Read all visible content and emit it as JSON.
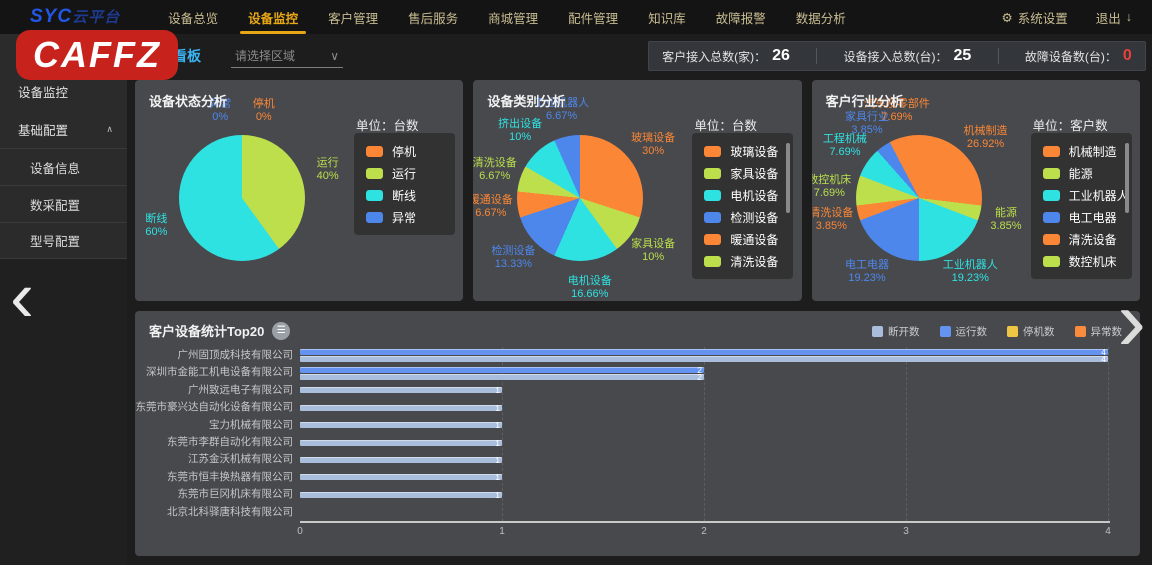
{
  "nav": {
    "logo_main": "SYC",
    "logo_sub": "云平台",
    "items": [
      {
        "label": "设备总览",
        "active": false
      },
      {
        "label": "设备监控",
        "active": true
      },
      {
        "label": "客户管理",
        "active": false
      },
      {
        "label": "售后服务",
        "active": false
      },
      {
        "label": "商城管理",
        "active": false
      },
      {
        "label": "配件管理",
        "active": false
      },
      {
        "label": "知识库",
        "active": false
      },
      {
        "label": "故障报警",
        "active": false
      },
      {
        "label": "数据分析",
        "active": false
      }
    ],
    "system_settings": "系统设置",
    "logout": "退出"
  },
  "sidebar": {
    "items": [
      {
        "label": "统计看板",
        "type": "item",
        "active": true
      },
      {
        "label": "设备监控",
        "type": "item"
      },
      {
        "label": "基础配置",
        "type": "item",
        "expand": true
      },
      {
        "label": "设备信息",
        "type": "sub"
      },
      {
        "label": "数采配置",
        "type": "sub"
      },
      {
        "label": "型号配置",
        "type": "sub"
      }
    ]
  },
  "header": {
    "page_title": "统计看板",
    "region_placeholder": "请选择区域",
    "stats": [
      {
        "label": "客户接入总数(家)：",
        "value": "26",
        "color": "#ffffff"
      },
      {
        "label": "设备接入总数(台)：",
        "value": "25",
        "color": "#ffffff"
      },
      {
        "label": "故障设备数(台)：",
        "value": "0",
        "color": "#e8413c"
      }
    ]
  },
  "watermark": {
    "text": "CAFFZ",
    "color": "#c7231c"
  },
  "chart_data": [
    {
      "type": "pie",
      "title": "设备状态分析",
      "unit": "单位：台数",
      "legend": [
        "停机",
        "运行",
        "断线",
        "异常"
      ],
      "legend_scrollbar": false,
      "slices": [
        {
          "name": "停机",
          "value": 0,
          "pct": "0%",
          "color": "#fb8636",
          "label_angle": 14
        },
        {
          "name": "运行",
          "value": 40,
          "pct": "40%",
          "color": "#bcdf4b",
          "label_angle": 72
        },
        {
          "name": "断线",
          "value": 60,
          "pct": "60%",
          "color": "#2fe2e2",
          "label_angle": 252
        },
        {
          "name": "异常",
          "value": 0,
          "pct": "0%",
          "color": "#4e87ec",
          "label_angle": 346
        }
      ]
    },
    {
      "type": "pie",
      "title": "设备类别分析",
      "unit": "单位：台数",
      "legend": [
        "玻璃设备",
        "家具设备",
        "电机设备",
        "检测设备",
        "暖通设备",
        "清洗设备"
      ],
      "legend_scrollbar": true,
      "slices": [
        {
          "name": "玻璃设备",
          "value": 30,
          "pct": "30%",
          "color": "#fb8636",
          "label_angle": 54
        },
        {
          "name": "家具设备",
          "value": 10,
          "pct": "10%",
          "color": "#bcdf4b",
          "label_angle": 126
        },
        {
          "name": "电机设备",
          "value": 16.66,
          "pct": "16.66%",
          "color": "#2fe2e2",
          "label_angle": 174
        },
        {
          "name": "检测设备",
          "value": 13.33,
          "pct": "13.33%",
          "color": "#4e87ec",
          "label_angle": 228
        },
        {
          "name": "暖通设备",
          "value": 6.67,
          "pct": "6.67%",
          "color": "#fb8636",
          "label_angle": 264
        },
        {
          "name": "清洗设备",
          "value": 6.67,
          "pct": "6.67%",
          "color": "#bcdf4b",
          "label_angle": 288
        },
        {
          "name": "挤出设备",
          "value": 10,
          "pct": "10%",
          "color": "#2fe2e2",
          "label_angle": 318
        },
        {
          "name": "工业机器人",
          "value": 6.67,
          "pct": "6.67%",
          "color": "#4e87ec",
          "label_angle": 348
        }
      ]
    },
    {
      "type": "pie",
      "title": "客户行业分析",
      "unit": "单位：客户数",
      "legend": [
        "机械制造",
        "能源",
        "工业机器人",
        "电工电器",
        "清洗设备",
        "数控机床"
      ],
      "legend_scrollbar": true,
      "slices": [
        {
          "name": "机械制造",
          "value": 26.92,
          "pct": "26.92%",
          "color": "#fb8636",
          "label_angle": 48
        },
        {
          "name": "能源",
          "value": 3.85,
          "pct": "3.85%",
          "color": "#bcdf4b",
          "label_angle": 104
        },
        {
          "name": "工业机器人",
          "value": 19.23,
          "pct": "19.23%",
          "color": "#2fe2e2",
          "label_angle": 145
        },
        {
          "name": "电工电器",
          "value": 19.23,
          "pct": "19.23%",
          "color": "#4e87ec",
          "label_angle": 215
        },
        {
          "name": "清洗设备",
          "value": 3.85,
          "pct": "3.85%",
          "color": "#fb8636",
          "label_angle": 256
        },
        {
          "name": "数控机床",
          "value": 7.69,
          "pct": "7.69%",
          "color": "#bcdf4b",
          "label_angle": 277
        },
        {
          "name": "工程机械",
          "value": 7.69,
          "pct": "7.69%",
          "color": "#2fe2e2",
          "label_angle": 305
        },
        {
          "name": "家具行业",
          "value": 3.85,
          "pct": "3.85%",
          "color": "#4e87ec",
          "label_angle": 325
        },
        {
          "name": "汽车及零部件",
          "value": 7.69,
          "pct": "7.69%",
          "color": "#fb8636",
          "label_angle": 346
        }
      ]
    },
    {
      "type": "bar",
      "title": "客户设备统计Top20",
      "legend": [
        {
          "name": "断开数",
          "color": "#a9bedd"
        },
        {
          "name": "运行数",
          "color": "#6493f0"
        },
        {
          "name": "停机数",
          "color": "#eec643"
        },
        {
          "name": "异常数",
          "color": "#fb8b3c"
        }
      ],
      "categories": [
        "广州固顶成科技有限公司",
        "深圳市金能工机电设备有限公司",
        "广州致远电子有限公司",
        "东莞市豪兴达自动化设备有限公司",
        "宝力机械有限公司",
        "东莞市李群自动化有限公司",
        "江苏金沃机械有限公司",
        "东莞市恒丰换热器有限公司",
        "东莞市巨冈机床有限公司",
        "北京北科驿唐科技有限公司"
      ],
      "series": [
        {
          "name": "运行数",
          "color": "#6493f0",
          "values": [
            4,
            2,
            0,
            0,
            0,
            0,
            0,
            0,
            0,
            0
          ]
        },
        {
          "name": "断开数",
          "color": "#a9bedd",
          "values": [
            4,
            2,
            1,
            1,
            1,
            1,
            1,
            1,
            1,
            0
          ]
        },
        {
          "name": "停机数",
          "color": "#eec643",
          "values": [
            0,
            0,
            0,
            0,
            0,
            0,
            0,
            0,
            0,
            0
          ]
        },
        {
          "name": "异常数",
          "color": "#fb8b3c",
          "values": [
            0,
            0,
            0,
            0,
            0,
            0,
            0,
            0,
            0,
            0
          ]
        }
      ],
      "xlim": [
        0,
        4
      ],
      "xticks": [
        0,
        1,
        2,
        3,
        4
      ]
    }
  ]
}
